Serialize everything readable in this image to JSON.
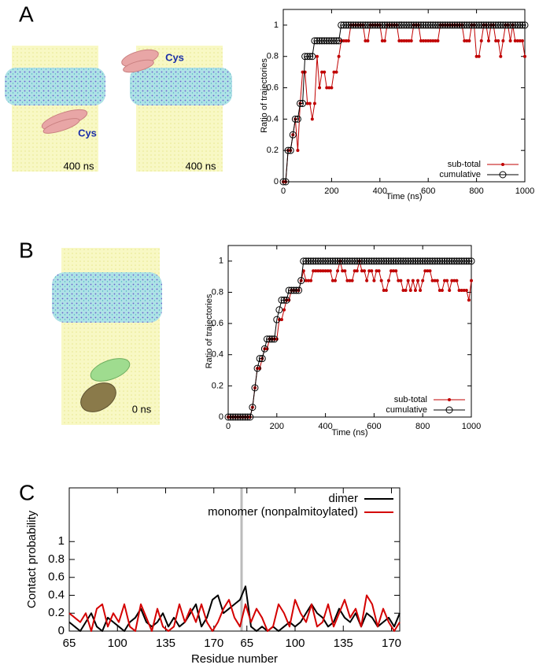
{
  "figure": {
    "panel_labels": [
      "A",
      "B",
      "C"
    ],
    "annotations": [
      "Cys",
      "Cys",
      "400 ns",
      "400 ns",
      "0 ns"
    ]
  },
  "chart_data": [
    {
      "type": "line",
      "xlabel": "Time (ns)",
      "ylabel": "Ratio of trajectories",
      "x": [
        0,
        10,
        20,
        30,
        40,
        50,
        60,
        70,
        80,
        90,
        100,
        110,
        120,
        130,
        140,
        150,
        160,
        170,
        180,
        190,
        200,
        210,
        220,
        230,
        240,
        250,
        260,
        270,
        280,
        290,
        300,
        310,
        320,
        330,
        340,
        350,
        360,
        370,
        380,
        390,
        400,
        410,
        420,
        430,
        440,
        450,
        460,
        470,
        480,
        490,
        500,
        510,
        520,
        530,
        540,
        550,
        560,
        570,
        580,
        590,
        600,
        610,
        620,
        630,
        640,
        650,
        660,
        670,
        680,
        690,
        700,
        710,
        720,
        730,
        740,
        750,
        760,
        770,
        780,
        790,
        800,
        810,
        820,
        830,
        840,
        850,
        860,
        870,
        880,
        890,
        900,
        910,
        920,
        930,
        940,
        950,
        960,
        970,
        980,
        990,
        1000
      ],
      "xlim": [
        0,
        1000
      ],
      "xticks": [
        0,
        200,
        400,
        600,
        800,
        1000
      ],
      "ylim": [
        0,
        1.1
      ],
      "yticks": [
        0,
        0.2,
        0.4,
        0.6,
        0.8,
        1
      ],
      "legend": "lower right",
      "series": [
        {
          "name": "sub-total",
          "color": "#c00000",
          "marker": "filled",
          "values": [
            0,
            0,
            0.2,
            0.2,
            0.3,
            0.4,
            0.2,
            0.5,
            0.7,
            0.7,
            0.5,
            0.5,
            0.4,
            0.5,
            0.8,
            0.6,
            0.7,
            0.7,
            0.6,
            0.6,
            0.6,
            0.7,
            0.7,
            0.8,
            0.9,
            0.9,
            0.9,
            0.9,
            1,
            1,
            1,
            1,
            1,
            1,
            0.9,
            0.9,
            1,
            1,
            1,
            1,
            1,
            0.9,
            0.9,
            1,
            1,
            1,
            1,
            1,
            0.9,
            0.9,
            0.9,
            0.9,
            0.9,
            0.9,
            1,
            1,
            1,
            0.9,
            0.9,
            0.9,
            0.9,
            0.9,
            0.9,
            0.9,
            0.9,
            1,
            1,
            1,
            1,
            1,
            1,
            1,
            1,
            1,
            1,
            0.9,
            0.9,
            0.9,
            1,
            1,
            0.8,
            0.8,
            0.9,
            1,
            1,
            0.9,
            1,
            1,
            0.9,
            0.9,
            0.8,
            0.9,
            1,
            1,
            0.9,
            1,
            0.9,
            0.9,
            0.9,
            0.9,
            0.8
          ]
        },
        {
          "name": "cumulative",
          "color": "#000000",
          "marker": "open",
          "values": [
            0,
            0,
            0.2,
            0.2,
            0.3,
            0.4,
            0.4,
            0.5,
            0.5,
            0.8,
            0.8,
            0.8,
            0.8,
            0.9,
            0.9,
            0.9,
            0.9,
            0.9,
            0.9,
            0.9,
            0.9,
            0.9,
            0.9,
            0.9,
            1,
            1,
            1,
            1,
            1,
            1,
            1,
            1,
            1,
            1,
            1,
            1,
            1,
            1,
            1,
            1,
            1,
            1,
            1,
            1,
            1,
            1,
            1,
            1,
            1,
            1,
            1,
            1,
            1,
            1,
            1,
            1,
            1,
            1,
            1,
            1,
            1,
            1,
            1,
            1,
            1,
            1,
            1,
            1,
            1,
            1,
            1,
            1,
            1,
            1,
            1,
            1,
            1,
            1,
            1,
            1,
            1,
            1,
            1,
            1,
            1,
            1,
            1,
            1,
            1,
            1,
            1,
            1,
            1,
            1,
            1,
            1,
            1,
            1,
            1,
            1,
            1
          ]
        }
      ]
    },
    {
      "type": "line",
      "xlabel": "Time (ns)",
      "ylabel": "Ratio of trajectories",
      "x": [
        0,
        10,
        20,
        30,
        40,
        50,
        60,
        70,
        80,
        90,
        100,
        110,
        120,
        130,
        140,
        150,
        160,
        170,
        180,
        190,
        200,
        210,
        220,
        230,
        240,
        250,
        260,
        270,
        280,
        290,
        300,
        310,
        320,
        330,
        340,
        350,
        360,
        370,
        380,
        390,
        400,
        410,
        420,
        430,
        440,
        450,
        460,
        470,
        480,
        490,
        500,
        510,
        520,
        530,
        540,
        550,
        560,
        570,
        580,
        590,
        600,
        610,
        620,
        630,
        640,
        650,
        660,
        670,
        680,
        690,
        700,
        710,
        720,
        730,
        740,
        750,
        760,
        770,
        780,
        790,
        800,
        810,
        820,
        830,
        840,
        850,
        860,
        870,
        880,
        890,
        900,
        910,
        920,
        930,
        940,
        950,
        960,
        970,
        980,
        990,
        1000
      ],
      "xlim": [
        0,
        1000
      ],
      "xticks": [
        0,
        200,
        400,
        600,
        800,
        1000
      ],
      "ylim": [
        0,
        1.1
      ],
      "yticks": [
        0,
        0.2,
        0.4,
        0.6,
        0.8,
        1
      ],
      "legend": "lower right",
      "series": [
        {
          "name": "sub-total",
          "color": "#c00000",
          "marker": "filled",
          "values": [
            0,
            0,
            0,
            0,
            0,
            0,
            0,
            0,
            0,
            0,
            0.0625,
            0.1875,
            0.3125,
            0.3125,
            0.375,
            0.4375,
            0.4375,
            0.5,
            0.5,
            0.5,
            0.5,
            0.625,
            0.625,
            0.6875,
            0.75,
            0.75,
            0.8125,
            0.8125,
            0.8125,
            0.8125,
            0.875,
            0.9375,
            0.875,
            0.875,
            0.875,
            0.9375,
            0.9375,
            0.9375,
            0.9375,
            0.9375,
            0.9375,
            0.9375,
            0.9375,
            0.875,
            0.875,
            0.9375,
            1,
            0.9375,
            0.9375,
            0.875,
            0.875,
            0.875,
            0.9375,
            0.9375,
            1,
            0.9375,
            0.9375,
            0.875,
            0.9375,
            0.9375,
            0.875,
            0.9375,
            0.9375,
            0.875,
            0.8125,
            0.8125,
            0.875,
            0.9375,
            0.9375,
            0.9375,
            0.875,
            0.875,
            0.8125,
            0.8125,
            0.875,
            0.8125,
            0.875,
            0.8125,
            0.875,
            0.8125,
            0.875,
            0.9375,
            0.9375,
            0.9375,
            0.875,
            0.875,
            0.875,
            0.8125,
            0.8125,
            0.875,
            0.875,
            0.8125,
            0.875,
            0.875,
            0.875,
            0.8125,
            0.8125,
            0.8125,
            0.8125,
            0.75,
            0.875
          ]
        },
        {
          "name": "cumulative",
          "color": "#000000",
          "marker": "open",
          "values": [
            0,
            0,
            0,
            0,
            0,
            0,
            0,
            0,
            0,
            0,
            0.0625,
            0.1875,
            0.3125,
            0.375,
            0.375,
            0.4375,
            0.5,
            0.5,
            0.5,
            0.5,
            0.625,
            0.6875,
            0.75,
            0.75,
            0.75,
            0.8125,
            0.8125,
            0.8125,
            0.8125,
            0.8125,
            0.875,
            1,
            1,
            1,
            1,
            1,
            1,
            1,
            1,
            1,
            1,
            1,
            1,
            1,
            1,
            1,
            1,
            1,
            1,
            1,
            1,
            1,
            1,
            1,
            1,
            1,
            1,
            1,
            1,
            1,
            1,
            1,
            1,
            1,
            1,
            1,
            1,
            1,
            1,
            1,
            1,
            1,
            1,
            1,
            1,
            1,
            1,
            1,
            1,
            1,
            1,
            1,
            1,
            1,
            1,
            1,
            1,
            1,
            1,
            1,
            1,
            1,
            1,
            1,
            1,
            1,
            1,
            1,
            1,
            1,
            1
          ]
        }
      ]
    },
    {
      "type": "line",
      "xlabel": "Residue number",
      "ylabel": "Contact probability",
      "x": [
        0,
        4,
        8,
        12,
        16,
        20,
        24,
        28,
        32,
        36,
        40,
        44,
        48,
        52,
        56,
        60,
        64,
        68,
        72,
        76,
        80,
        84,
        88,
        92,
        96,
        100,
        104,
        108,
        112,
        116,
        120,
        124,
        128,
        132,
        136,
        140,
        144,
        148,
        152,
        156,
        160,
        164,
        168,
        172,
        176,
        180,
        184,
        188,
        192,
        196,
        200,
        204,
        208,
        212,
        216,
        220,
        224,
        228,
        232,
        236,
        240
      ],
      "xlim": [
        0,
        240
      ],
      "xticks": [
        {
          "value": 0,
          "label": "65"
        },
        {
          "value": 35,
          "label": "100"
        },
        {
          "value": 70,
          "label": "135"
        },
        {
          "value": 105,
          "label": "170"
        },
        {
          "value": 129,
          "label": "65"
        },
        {
          "value": 164,
          "label": "100"
        },
        {
          "value": 199,
          "label": "135"
        },
        {
          "value": 234,
          "label": "170"
        }
      ],
      "ylim": [
        0,
        1.6
      ],
      "yticks": [
        0,
        0.2,
        0.4,
        0.6,
        0.8,
        1
      ],
      "legend": "upper right",
      "series": [
        {
          "name": "dimer",
          "color": "#000000",
          "marker": "none",
          "values": [
            0.1,
            0.05,
            0,
            0.1,
            0.2,
            0.05,
            0,
            0.15,
            0.1,
            0.05,
            0,
            0.1,
            0.15,
            0.25,
            0.1,
            0.05,
            0.1,
            0.2,
            0.05,
            0.15,
            0.05,
            0.1,
            0.2,
            0.3,
            0.05,
            0.15,
            0.35,
            0.4,
            0.2,
            0.25,
            0.3,
            0.35,
            0.5,
            0.05,
            0,
            0.05,
            0,
            0.05,
            0,
            0.05,
            0.1,
            0.05,
            0.1,
            0.2,
            0.3,
            0.2,
            0.15,
            0.05,
            0.1,
            0.25,
            0.15,
            0.1,
            0.2,
            0.05,
            0.2,
            0.15,
            0.05,
            0.1,
            0.15,
            0.05,
            0.2
          ]
        },
        {
          "name": "monomer (nonpalmitoylated)",
          "color": "#d40000",
          "marker": "none",
          "values": [
            0.2,
            0.15,
            0.1,
            0.2,
            0,
            0.25,
            0.3,
            0.05,
            0.2,
            0.1,
            0.3,
            0.05,
            0,
            0.3,
            0.15,
            0,
            0.25,
            0.05,
            0,
            0.05,
            0.3,
            0.1,
            0.25,
            0.1,
            0.3,
            0.1,
            0,
            0.1,
            0.25,
            0.35,
            0.15,
            0.05,
            0.3,
            0.1,
            0.25,
            0.15,
            0,
            0.05,
            0.3,
            0.2,
            0.05,
            0.35,
            0.2,
            0.1,
            0.3,
            0.05,
            0.1,
            0.3,
            0.05,
            0.2,
            0.35,
            0.15,
            0.25,
            0.05,
            0.4,
            0.3,
            0.05,
            0.25,
            0.1,
            0,
            0.1
          ]
        }
      ]
    }
  ]
}
